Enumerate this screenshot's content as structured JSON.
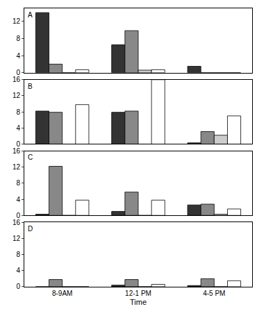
{
  "chart_data": [
    {
      "type": "bar",
      "title": "A",
      "tick_labels": "y",
      "grid": false,
      "categories": [
        "8-9AM",
        "12-1 PM",
        "4-5 PM"
      ],
      "ylim": [
        0,
        15
      ],
      "yticks": [
        0,
        4,
        8,
        12
      ],
      "series": [
        {
          "color": "#333333",
          "values": [
            14,
            6.5,
            1.5
          ]
        },
        {
          "color": "#888888",
          "values": [
            2,
            9.8,
            0
          ]
        },
        {
          "color": "#cccccc",
          "values": [
            0,
            0.6,
            0
          ]
        },
        {
          "color": "#ffffff",
          "values": [
            0.7,
            0.7,
            0
          ]
        }
      ]
    },
    {
      "type": "bar",
      "title": "B",
      "tick_labels": "y",
      "grid": false,
      "categories": [
        "8-9AM",
        "12-1 PM",
        "4-5 PM"
      ],
      "ylim": [
        0,
        16
      ],
      "yticks": [
        0,
        4,
        8,
        12,
        16
      ],
      "series": [
        {
          "color": "#333333",
          "values": [
            8.2,
            7.9,
            0.3
          ]
        },
        {
          "color": "#888888",
          "values": [
            7.9,
            8.2,
            3.1
          ]
        },
        {
          "color": "#cccccc",
          "values": [
            0,
            0,
            2.2
          ]
        },
        {
          "color": "#ffffff",
          "values": [
            9.8,
            16,
            7
          ]
        }
      ]
    },
    {
      "type": "bar",
      "title": "C",
      "tick_labels": "y",
      "grid": false,
      "categories": [
        "8-9AM",
        "12-1 PM",
        "4-5 PM"
      ],
      "ylim": [
        0,
        16
      ],
      "yticks": [
        0,
        4,
        8,
        12,
        16
      ],
      "series": [
        {
          "color": "#333333",
          "values": [
            0.3,
            1,
            2.6
          ]
        },
        {
          "color": "#888888",
          "values": [
            12.2,
            5.8,
            2.8
          ]
        },
        {
          "color": "#cccccc",
          "values": [
            0,
            0,
            0.3
          ]
        },
        {
          "color": "#ffffff",
          "values": [
            3.8,
            3.8,
            1.6
          ]
        }
      ]
    },
    {
      "type": "bar",
      "title": "D",
      "xlabel": "Time",
      "grid": false,
      "categories": [
        "8-9AM",
        "12-1 PM",
        "4-5 PM"
      ],
      "ylim": [
        0,
        16
      ],
      "yticks": [
        0,
        4,
        8,
        12,
        16
      ],
      "series": [
        {
          "color": "#333333",
          "values": [
            0,
            0.4,
            0.3
          ]
        },
        {
          "color": "#888888",
          "values": [
            1.8,
            1.8,
            2
          ]
        },
        {
          "color": "#cccccc",
          "values": [
            0,
            0,
            0
          ]
        },
        {
          "color": "#ffffff",
          "values": [
            0,
            0.6,
            1.5
          ]
        }
      ]
    }
  ]
}
